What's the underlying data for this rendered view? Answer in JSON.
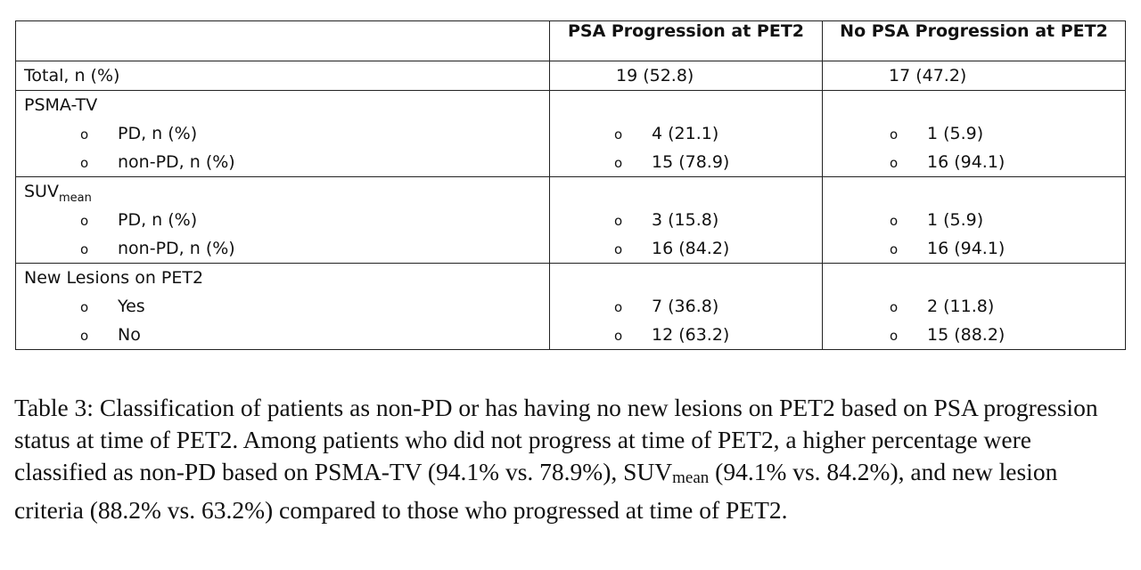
{
  "table": {
    "header": {
      "col1": "",
      "col2": "PSA Progression at PET2",
      "col3": "No PSA Progression at PET2"
    },
    "total": {
      "label": "Total, n (%)",
      "col2": "19 (52.8)",
      "col3": "17 (47.2)"
    },
    "bullet_symbol": "o",
    "sections": [
      {
        "title": "PSMA-TV",
        "title_sub": "",
        "rows": [
          {
            "label": "PD, n (%)",
            "col2": "4 (21.1)",
            "col3": "1 (5.9)"
          },
          {
            "label": "non-PD, n (%)",
            "col2": "15 (78.9)",
            "col3": "16 (94.1)"
          }
        ]
      },
      {
        "title": "SUV",
        "title_sub": "mean",
        "rows": [
          {
            "label": "PD, n (%)",
            "col2": "3 (15.8)",
            "col3": "1 (5.9)"
          },
          {
            "label": "non-PD, n (%)",
            "col2": "16 (84.2)",
            "col3": "16 (94.1)"
          }
        ]
      },
      {
        "title": "New Lesions on PET2",
        "title_sub": "",
        "rows": [
          {
            "label": "Yes",
            "col2": "7 (36.8)",
            "col3": "2 (11.8)"
          },
          {
            "label": "No",
            "col2": "12 (63.2)",
            "col3": "15 (88.2)"
          }
        ]
      }
    ]
  },
  "caption": {
    "part1": "Table 3: Classification of patients as non-PD or has having no new lesions on PET2 based on PSA progression status at time of PET2. Among patients who did not progress at time of PET2, a higher percentage were classified as non-PD based on PSMA-TV (94.1% vs. 78.9%), SUV",
    "sub": "mean",
    "part2": " (94.1% vs. 84.2%), and new lesion criteria (88.2% vs. 63.2%) compared to those who progressed at time of PET2."
  }
}
